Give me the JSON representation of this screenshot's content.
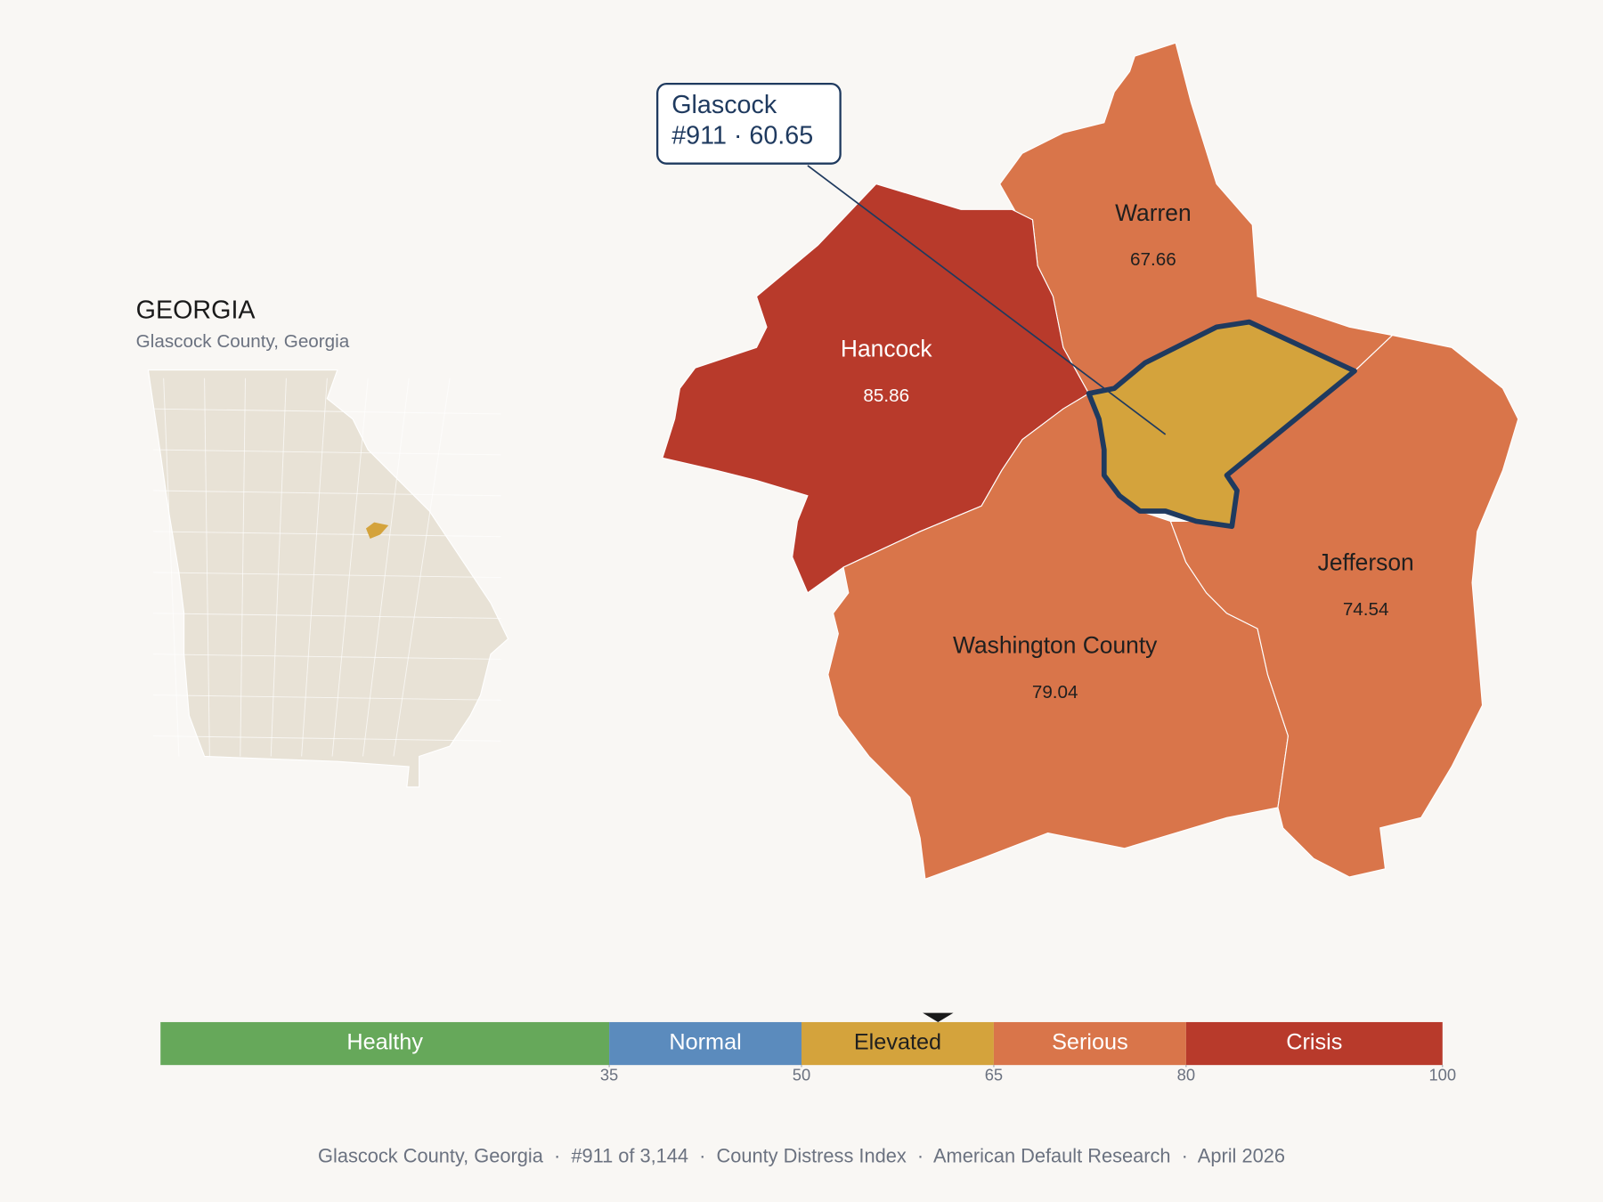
{
  "header": {
    "title": "GEORGIA",
    "subtitle": "Glascock County, Georgia"
  },
  "focus": {
    "name": "Glascock",
    "rank_label": "#911 · 60.65",
    "score": 60.65,
    "color": "#d4a33c",
    "outline": "#1f3a5f"
  },
  "counties": [
    {
      "name": "Warren",
      "value": 67.66,
      "color": "#d9754a",
      "text_color": "#1f1f1f"
    },
    {
      "name": "Hancock",
      "value": 85.86,
      "color": "#b83a2b",
      "text_color": "#ffffff"
    },
    {
      "name": "Washington County",
      "value": 79.04,
      "color": "#d9754a",
      "text_color": "#1f1f1f"
    },
    {
      "name": "Jefferson",
      "value": 74.54,
      "color": "#d9754a",
      "text_color": "#1f1f1f"
    }
  ],
  "state_color": "#e8e2d6",
  "scale": {
    "lim": [
      0,
      100
    ],
    "ticks": [
      35,
      50,
      65,
      80,
      100
    ],
    "bands": [
      {
        "label": "Healthy",
        "color": "#66a85a",
        "text_color": "#ffffff"
      },
      {
        "label": "Normal",
        "color": "#5b8bbd",
        "text_color": "#ffffff"
      },
      {
        "label": "Elevated",
        "color": "#d4a33c",
        "text_color": "#1f1f1f"
      },
      {
        "label": "Serious",
        "color": "#d9754a",
        "text_color": "#ffffff"
      },
      {
        "label": "Crisis",
        "color": "#b83a2b",
        "text_color": "#ffffff"
      }
    ]
  },
  "footer": "Glascock County, Georgia  ·  #911 of 3,144  ·  County Distress Index  ·  American Default Research  ·  April 2026"
}
